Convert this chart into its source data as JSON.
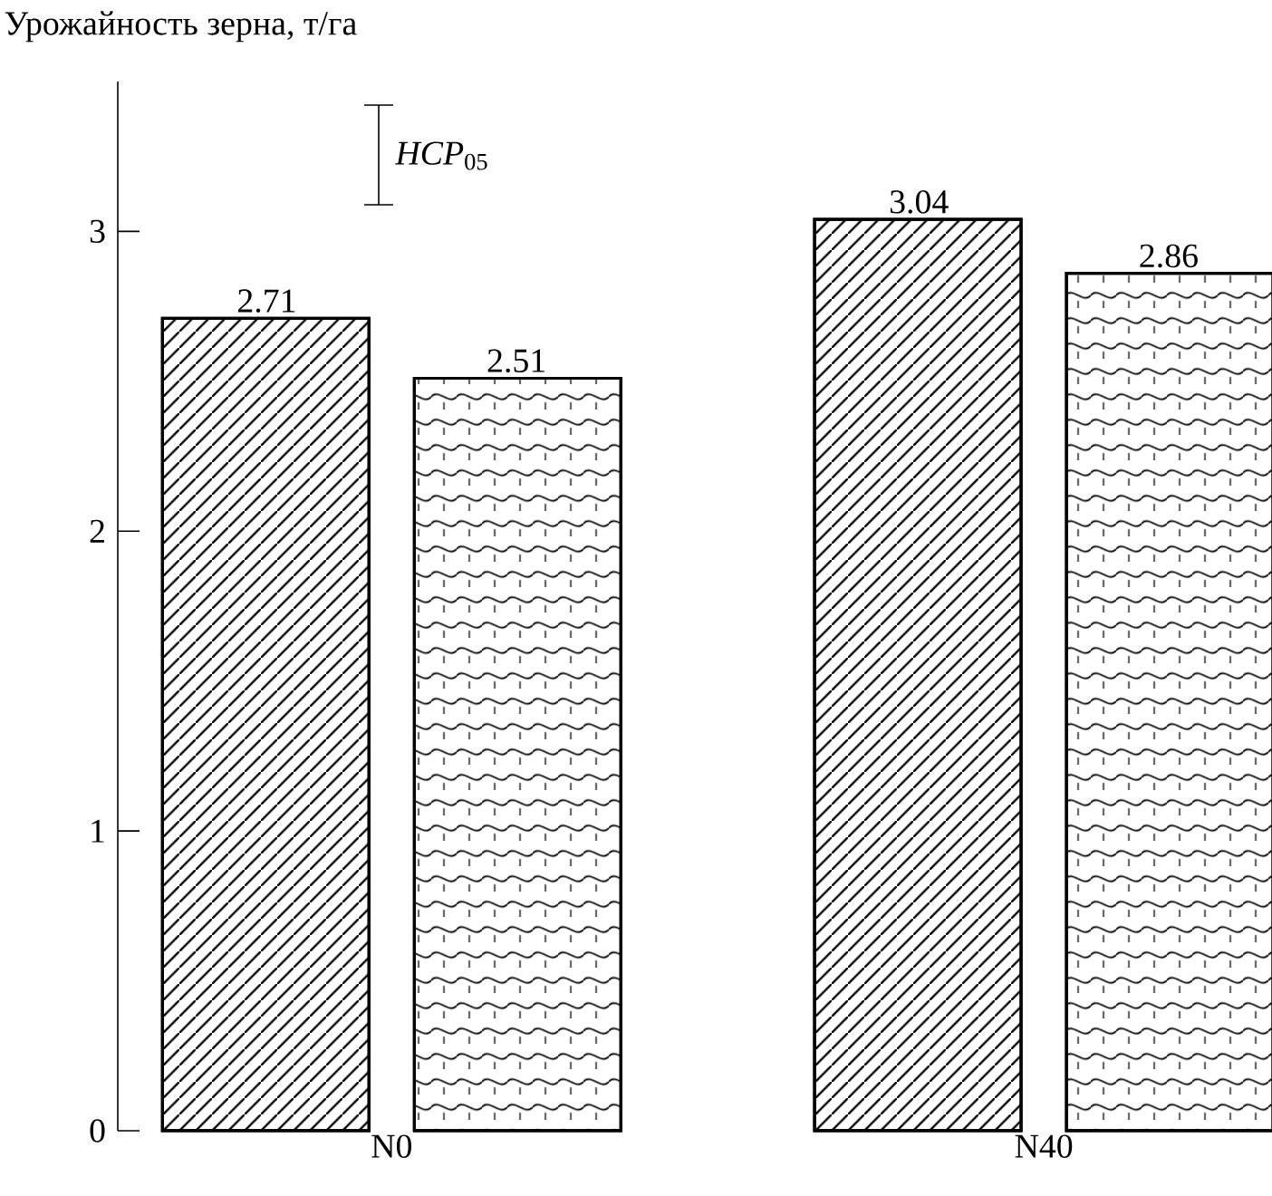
{
  "chart_data": {
    "type": "bar",
    "ylabel": "Урожайность зерна, т/га",
    "categories": [
      "N0",
      "N40"
    ],
    "series": [
      {
        "color": "#000000",
        "values": [
          2.71,
          3.04
        ]
      },
      {
        "color": "#000000",
        "values": [
          2.51,
          2.86
        ]
      }
    ],
    "ylim": [
      0,
      3.5
    ],
    "yticks": [
      0,
      1,
      2,
      3
    ],
    "data_labels": true,
    "grid": false,
    "annotations": [
      "*HCP*$_{05}$"
    ]
  }
}
